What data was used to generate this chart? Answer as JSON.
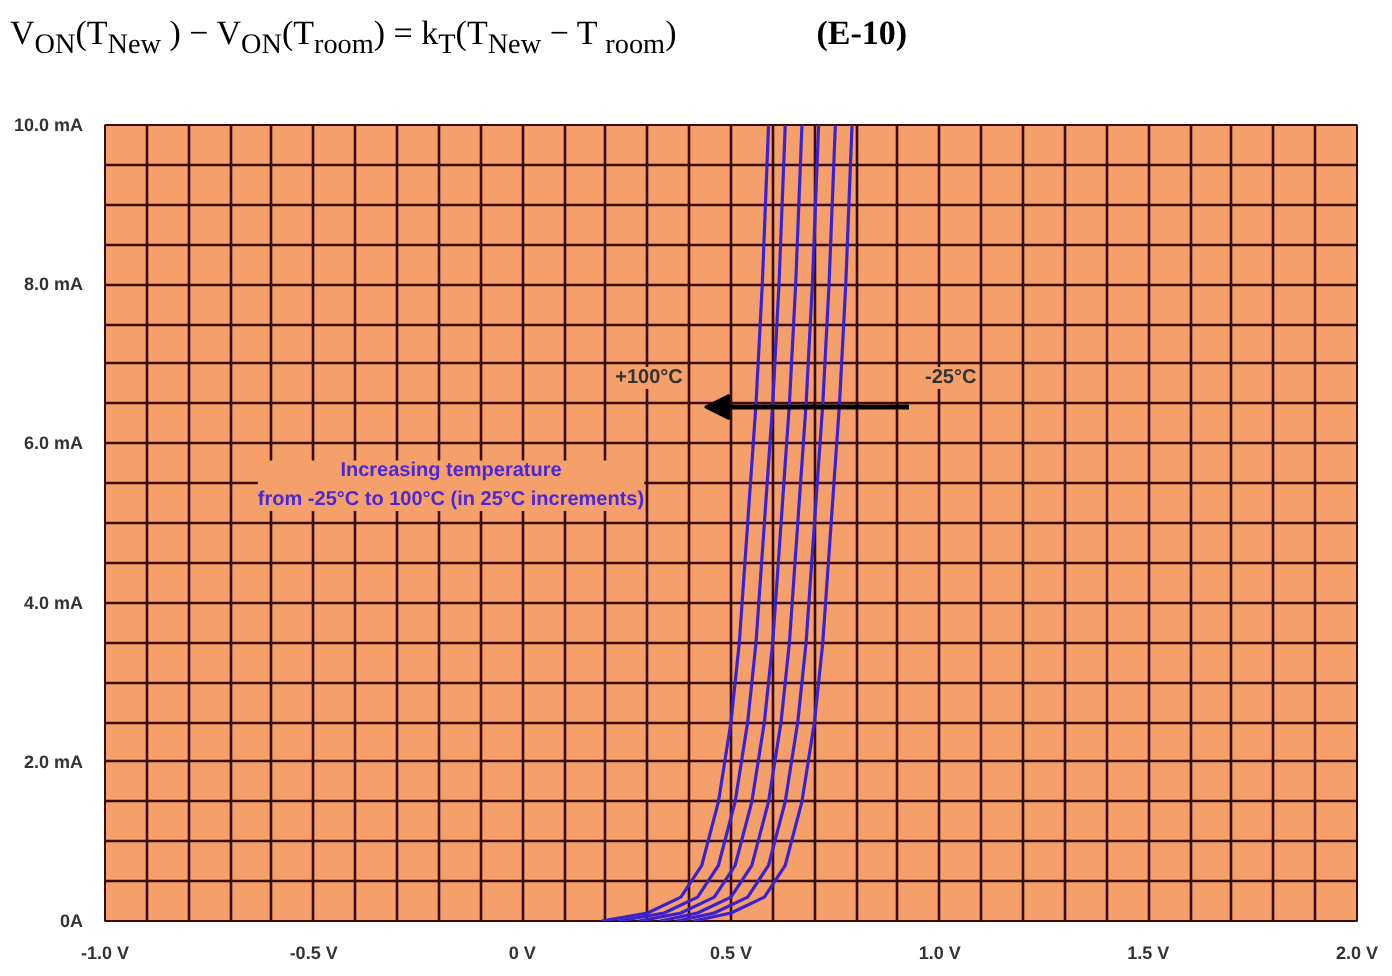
{
  "chart_data": {
    "type": "line",
    "title": "V$_{ON}$(T$_{New}$ ) − V$_{ON}$(T$_{room}$) = k$_{T}$(T$_{New}$ − T $_{room}$)",
    "subtitle": "(E-10)",
    "xlim": [
      -1.0,
      2.0
    ],
    "ylim": [
      0,
      10
    ],
    "xticks": [
      {
        "value": -1.0,
        "label": "-1.0 V"
      },
      {
        "value": -0.9,
        "label": null
      },
      {
        "value": -0.8,
        "label": null
      },
      {
        "value": -0.7,
        "label": null
      },
      {
        "value": -0.6,
        "label": null
      },
      {
        "value": -0.5,
        "label": "-0.5 V"
      },
      {
        "value": -0.4,
        "label": null
      },
      {
        "value": -0.3,
        "label": null
      },
      {
        "value": -0.2,
        "label": null
      },
      {
        "value": -0.1,
        "label": null
      },
      {
        "value": 0,
        "label": "0 V"
      },
      {
        "value": 0.1,
        "label": null
      },
      {
        "value": 0.2,
        "label": null
      },
      {
        "value": 0.3,
        "label": null
      },
      {
        "value": 0.4,
        "label": null
      },
      {
        "value": 0.5,
        "label": "0.5 V"
      },
      {
        "value": 0.6,
        "label": null
      },
      {
        "value": 0.7,
        "label": null
      },
      {
        "value": 0.8,
        "label": null
      },
      {
        "value": 0.9,
        "label": null
      },
      {
        "value": 1.0,
        "label": "1.0 V"
      },
      {
        "value": 1.1,
        "label": null
      },
      {
        "value": 1.2,
        "label": null
      },
      {
        "value": 1.3,
        "label": null
      },
      {
        "value": 1.4,
        "label": null
      },
      {
        "value": 1.5,
        "label": "1.5 V"
      },
      {
        "value": 1.6,
        "label": null
      },
      {
        "value": 1.7,
        "label": null
      },
      {
        "value": 1.8,
        "label": null
      },
      {
        "value": 1.9,
        "label": null
      },
      {
        "value": 2.0,
        "label": "2.0 V"
      }
    ],
    "yticks": [
      {
        "value": 0,
        "label": "0A"
      },
      {
        "value": 0.5,
        "label": null
      },
      {
        "value": 1,
        "label": null
      },
      {
        "value": 1.5,
        "label": null
      },
      {
        "value": 2,
        "label": "2.0 mA"
      },
      {
        "value": 2.5,
        "label": null
      },
      {
        "value": 3,
        "label": null
      },
      {
        "value": 3.5,
        "label": null
      },
      {
        "value": 4,
        "label": "4.0 mA"
      },
      {
        "value": 4.5,
        "label": null
      },
      {
        "value": 5,
        "label": null
      },
      {
        "value": 5.5,
        "label": null
      },
      {
        "value": 6,
        "label": "6.0 mA"
      },
      {
        "value": 6.5,
        "label": null
      },
      {
        "value": 7,
        "label": null
      },
      {
        "value": 7.5,
        "label": null
      },
      {
        "value": 8,
        "label": "8.0 mA"
      },
      {
        "value": 8.5,
        "label": null
      },
      {
        "value": 9,
        "label": null
      },
      {
        "value": 9.5,
        "label": null
      },
      {
        "value": 10,
        "label": "10.0 mA"
      }
    ],
    "grid": true,
    "series": [
      {
        "color": "#3a22d0",
        "x": [
          0.19,
          0.3,
          0.38,
          0.43,
          0.47,
          0.5,
          0.52,
          0.54,
          0.56,
          0.575,
          0.59
        ],
        "values": [
          0,
          0.1,
          0.3,
          0.7,
          1.5,
          2.5,
          3.5,
          5,
          6.5,
          8,
          10
        ]
      },
      {
        "color": "#3a22d0",
        "x": [
          0.23,
          0.34,
          0.42,
          0.47,
          0.51,
          0.54,
          0.56,
          0.58,
          0.6,
          0.615,
          0.63
        ],
        "values": [
          0,
          0.1,
          0.3,
          0.7,
          1.5,
          2.5,
          3.5,
          5,
          6.5,
          8,
          10
        ]
      },
      {
        "color": "#3a22d0",
        "x": [
          0.28,
          0.38,
          0.46,
          0.51,
          0.55,
          0.58,
          0.6,
          0.62,
          0.64,
          0.655,
          0.67
        ],
        "values": [
          0,
          0.1,
          0.3,
          0.7,
          1.5,
          2.5,
          3.5,
          5,
          6.5,
          8,
          10
        ]
      },
      {
        "color": "#3a22d0",
        "x": [
          0.33,
          0.42,
          0.5,
          0.55,
          0.59,
          0.62,
          0.64,
          0.66,
          0.68,
          0.695,
          0.71
        ],
        "values": [
          0,
          0.1,
          0.3,
          0.7,
          1.5,
          2.5,
          3.5,
          5,
          6.5,
          8,
          10
        ]
      },
      {
        "color": "#3a22d0",
        "x": [
          0.37,
          0.46,
          0.54,
          0.59,
          0.63,
          0.66,
          0.68,
          0.7,
          0.72,
          0.735,
          0.75
        ],
        "values": [
          0,
          0.1,
          0.3,
          0.7,
          1.5,
          2.5,
          3.5,
          5,
          6.5,
          8,
          10
        ]
      },
      {
        "color": "#3a22d0",
        "x": [
          0.41,
          0.5,
          0.58,
          0.63,
          0.67,
          0.7,
          0.72,
          0.74,
          0.76,
          0.775,
          0.79
        ],
        "values": [
          0,
          0.1,
          0.3,
          0.7,
          1.5,
          2.5,
          3.5,
          5,
          6.5,
          8,
          10
        ]
      }
    ],
    "annotations": [
      "+100°C",
      "-25°C",
      "Increasing temperature\nfrom -25°C to 100°C (in 25°C increments)"
    ]
  }
}
